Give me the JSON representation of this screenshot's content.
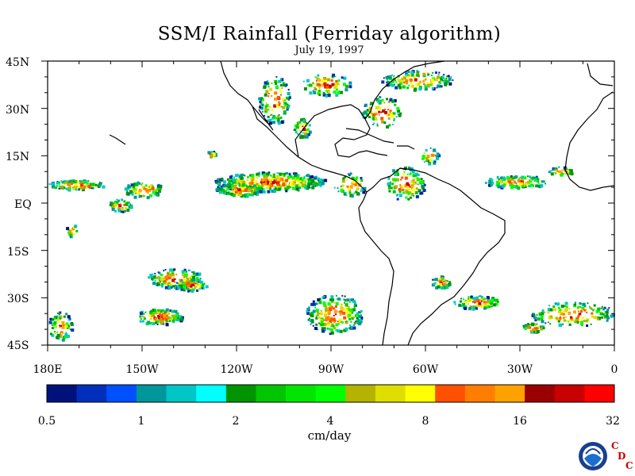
{
  "title": "SSM/I Rainfall (Ferriday algorithm)",
  "subtitle": "July 19, 1997",
  "map": {
    "lat_labels": [
      "45N",
      "30N",
      "15N",
      "EQ",
      "15S",
      "30S",
      "45S"
    ],
    "lon_labels": [
      "180E",
      "150W",
      "120W",
      "90W",
      "60W",
      "30W",
      "0"
    ],
    "lon_range": [
      -180,
      0
    ],
    "lat_range": [
      -45,
      45
    ]
  },
  "colorbar": {
    "units": "cm/day",
    "tick_labels": [
      "0.5",
      "1",
      "2",
      "4",
      "8",
      "16",
      "32"
    ],
    "colors": [
      "#00127a",
      "#0030bb",
      "#0050ff",
      "#00979b",
      "#00c6c6",
      "#00ffff",
      "#009500",
      "#00c500",
      "#00e600",
      "#00ff00",
      "#b3b300",
      "#dede00",
      "#ffff00",
      "#ff5000",
      "#ff7e00",
      "#ffa200",
      "#9a0000",
      "#c80000",
      "#ff0000"
    ]
  },
  "logos": {
    "noaa": "NOAA",
    "cdc_letters": [
      "C",
      "D",
      "C"
    ]
  },
  "rain_palette": [
    "#00127a",
    "#0030bb",
    "#00979b",
    "#00c6c6",
    "#009500",
    "#00c500",
    "#00ff00",
    "#b3b300",
    "#dede00",
    "#ffff00",
    "#ff5000",
    "#ff7e00",
    "#ffa200",
    "#c80000"
  ]
}
